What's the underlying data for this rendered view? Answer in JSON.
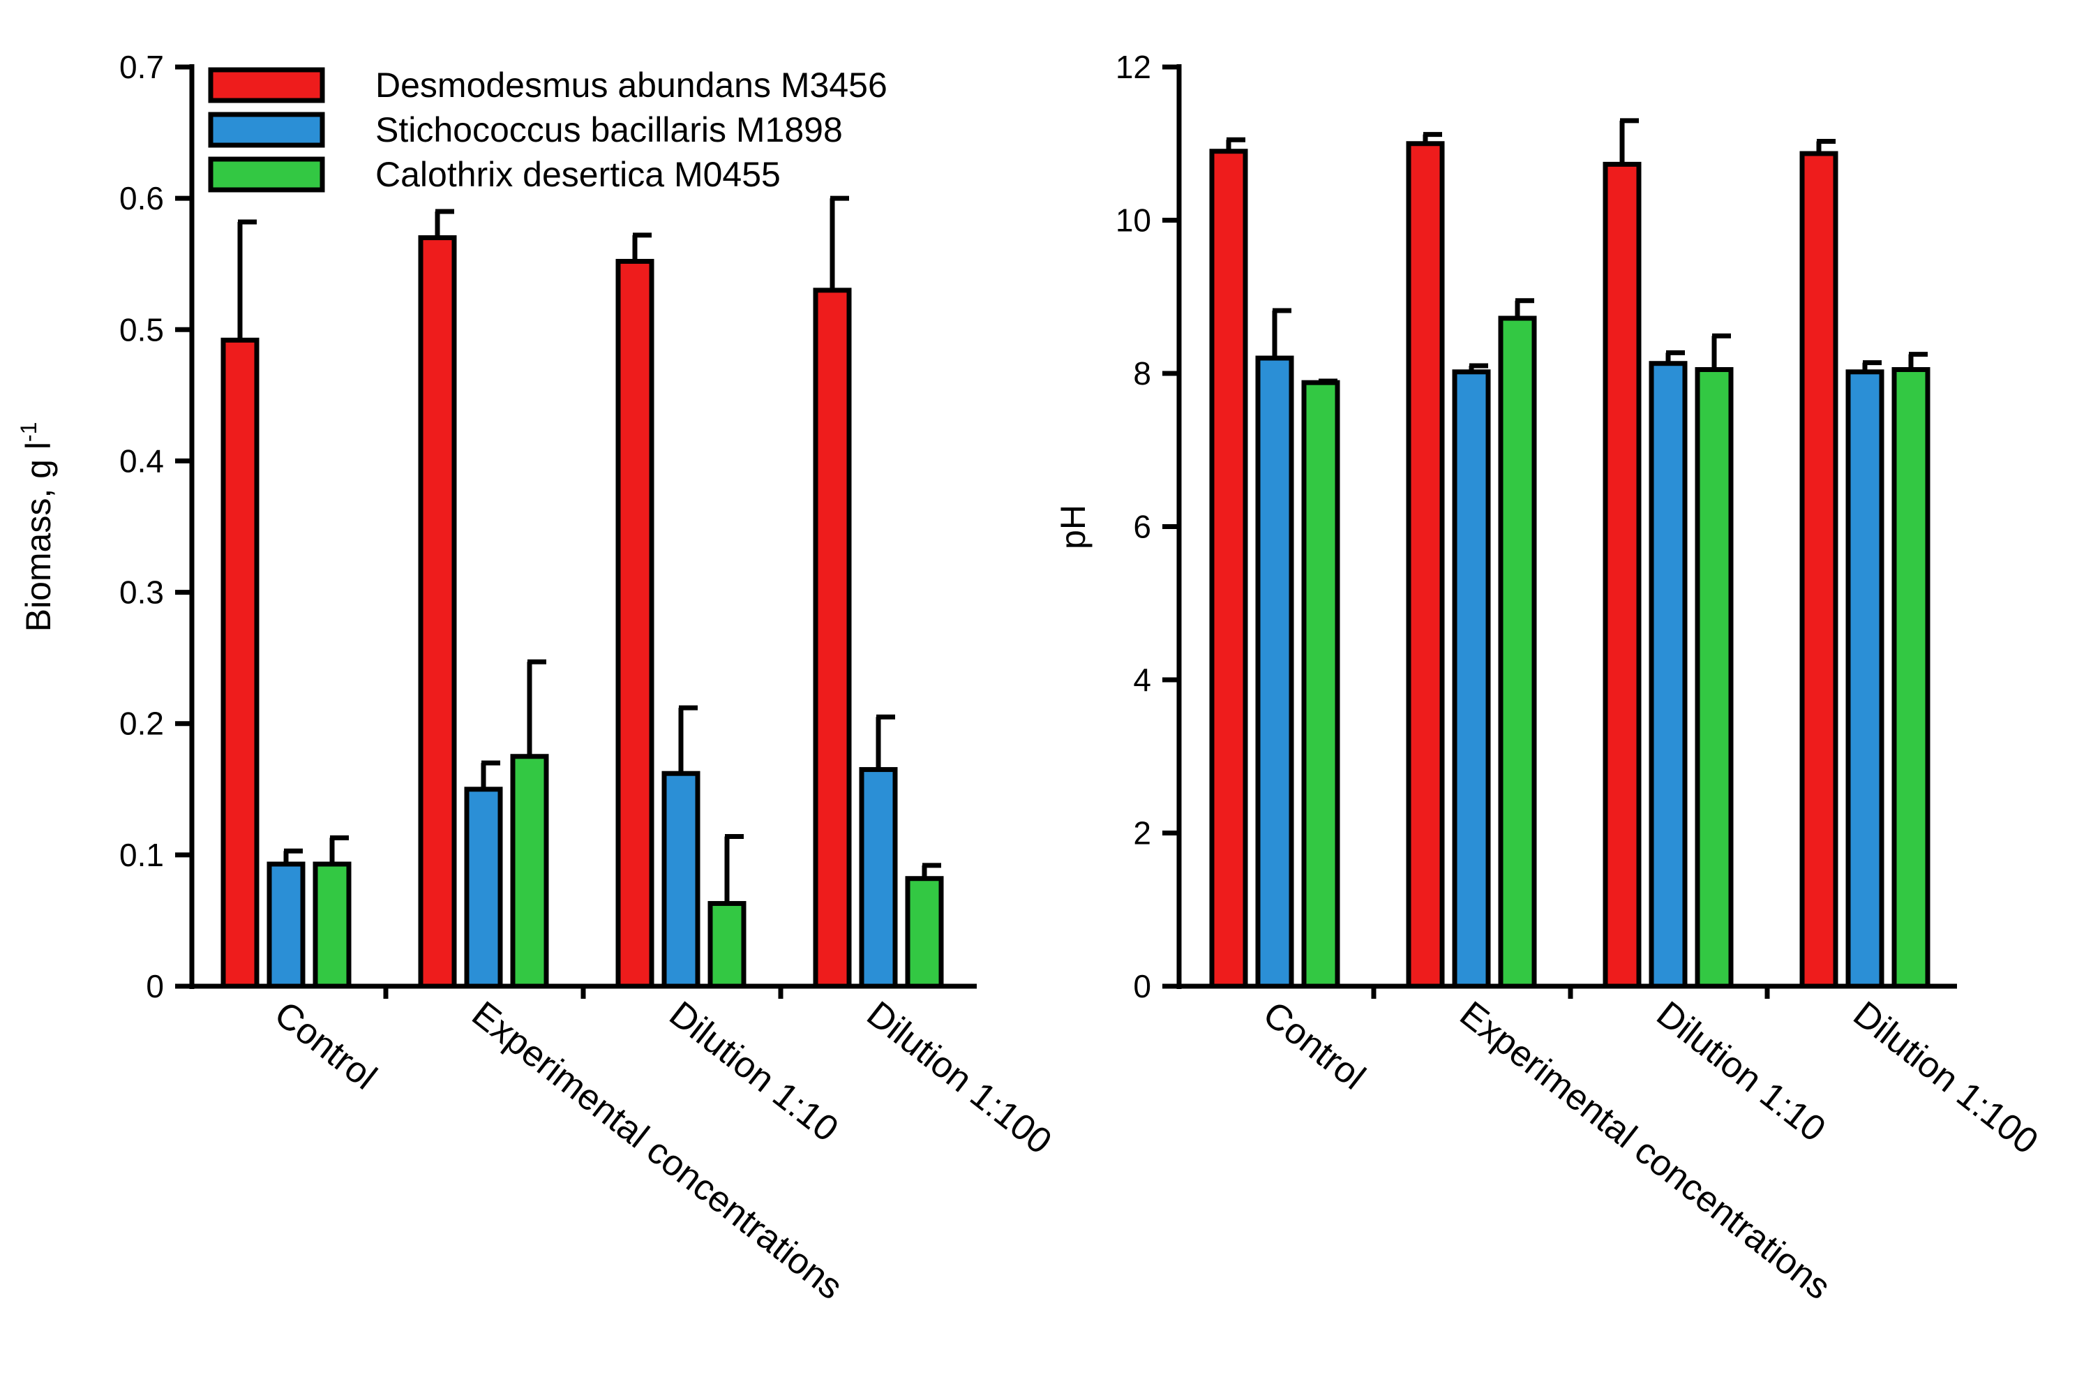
{
  "chart_data": [
    {
      "type": "bar",
      "title": "",
      "xlabel": "",
      "ylabel": "Biomass, g l",
      "ylabel_superscript": "-1",
      "ylim": [
        0,
        0.7
      ],
      "yticks": [
        0,
        0.1,
        0.2,
        0.3,
        0.4,
        0.5,
        0.6,
        0.7
      ],
      "ytick_labels": [
        "0",
        "0.1",
        "0.2",
        "0.3",
        "0.4",
        "0.5",
        "0.6",
        "0.7"
      ],
      "grid": false,
      "legend_position": "top-right",
      "categories": [
        "Control",
        "Experimental concentrations",
        "Dilution 1:10",
        "Dilution 1:100"
      ],
      "series": [
        {
          "name": "Desmodesmus abundans M3456",
          "color": "#ee1c1c",
          "values": [
            0.492,
            0.57,
            0.552,
            0.53
          ],
          "errors": [
            0.09,
            0.02,
            0.02,
            0.07
          ]
        },
        {
          "name": "Stichococcus bacillaris M1898",
          "color": "#2b8fd6",
          "values": [
            0.093,
            0.15,
            0.162,
            0.165
          ],
          "errors": [
            0.01,
            0.02,
            0.05,
            0.04
          ]
        },
        {
          "name": "Calothrix desertica M0455",
          "color": "#33c843",
          "values": [
            0.093,
            0.175,
            0.063,
            0.082
          ],
          "errors": [
            0.02,
            0.072,
            0.051,
            0.01
          ]
        }
      ]
    },
    {
      "type": "bar",
      "title": "",
      "xlabel": "",
      "ylabel": "pH",
      "ylim": [
        0,
        12
      ],
      "yticks": [
        0,
        2,
        4,
        6,
        8,
        10,
        12
      ],
      "ytick_labels": [
        "0",
        "2",
        "4",
        "6",
        "8",
        "10",
        "12"
      ],
      "grid": false,
      "categories": [
        "Control",
        "Experimental concentrations",
        "Dilution 1:10",
        "Dilution 1:100"
      ],
      "series": [
        {
          "name": "Desmodesmus abundans M3456",
          "color": "#ee1c1c",
          "values": [
            10.9,
            11.0,
            10.73,
            10.87
          ],
          "errors": [
            0.15,
            0.12,
            0.57,
            0.16
          ]
        },
        {
          "name": "Stichococcus bacillaris M1898",
          "color": "#2b8fd6",
          "values": [
            8.2,
            8.02,
            8.13,
            8.02
          ],
          "errors": [
            0.62,
            0.08,
            0.14,
            0.12
          ]
        },
        {
          "name": "Calothrix desertica M0455",
          "color": "#33c843",
          "values": [
            7.88,
            8.72,
            8.05,
            8.05
          ],
          "errors": [
            0.02,
            0.23,
            0.44,
            0.2
          ]
        }
      ]
    }
  ]
}
